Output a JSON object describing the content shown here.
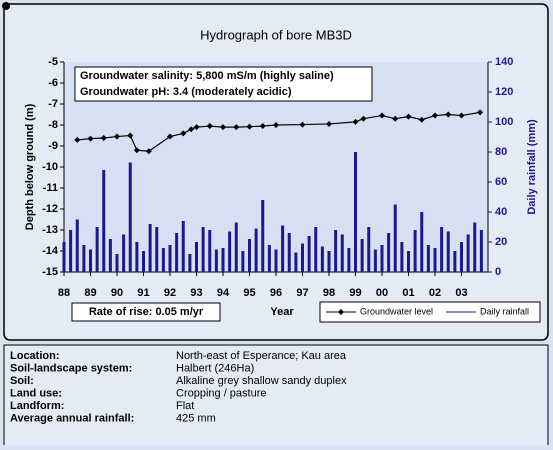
{
  "chart_data": {
    "type": "line",
    "title": "Hydrograph of bore MB3D",
    "xlabel": "Year",
    "ylabel": "Depth below ground (m)",
    "y2label": "Daily rainfall (mm)",
    "annotations": [
      "Groundwater salinity: 5,800 mS/m (highly saline)",
      "Groundwater pH: 3.4 (moderately acidic)",
      "Rate of rise: 0.05 m/yr"
    ],
    "xlim": [
      1988,
      2004
    ],
    "xticks": [
      {
        "value": 1988,
        "label": "88"
      },
      {
        "value": 1989,
        "label": "89"
      },
      {
        "value": 1990,
        "label": "90"
      },
      {
        "value": 1991,
        "label": "91"
      },
      {
        "value": 1992,
        "label": "92"
      },
      {
        "value": 1993,
        "label": "93"
      },
      {
        "value": 1994,
        "label": "94"
      },
      {
        "value": 1995,
        "label": "95"
      },
      {
        "value": 1996,
        "label": "96"
      },
      {
        "value": 1997,
        "label": "97"
      },
      {
        "value": 1998,
        "label": "98"
      },
      {
        "value": 1999,
        "label": "99"
      },
      {
        "value": 2000,
        "label": "00"
      },
      {
        "value": 2001,
        "label": "01"
      },
      {
        "value": 2002,
        "label": "02"
      },
      {
        "value": 2003,
        "label": "03"
      }
    ],
    "ylim": [
      -15,
      -5
    ],
    "yticks": [
      -5,
      -6,
      -7,
      -8,
      -9,
      -10,
      -11,
      -12,
      -13,
      -14,
      -15
    ],
    "y2lim": [
      0,
      140
    ],
    "y2ticks": [
      0,
      20,
      40,
      60,
      80,
      100,
      120,
      140
    ],
    "series": [
      {
        "name": "Groundwater level",
        "type": "line",
        "color": "#000000",
        "x": [
          1988.5,
          1989.0,
          1989.5,
          1990.0,
          1990.5,
          1990.75,
          1991.2,
          1992.0,
          1992.5,
          1992.8,
          1993.0,
          1993.5,
          1994.0,
          1994.5,
          1995.0,
          1995.5,
          1996.0,
          1997.0,
          1998.0,
          1999.0,
          1999.3,
          2000.0,
          2000.5,
          2001.0,
          2001.5,
          2002.0,
          2002.5,
          2003.0,
          2003.7
        ],
        "values": [
          -8.71,
          -8.65,
          -8.62,
          -8.55,
          -8.5,
          -9.2,
          -9.25,
          -8.55,
          -8.4,
          -8.2,
          -8.1,
          -8.05,
          -8.1,
          -8.1,
          -8.08,
          -8.05,
          -8.0,
          -7.98,
          -7.95,
          -7.85,
          -7.7,
          -7.55,
          -7.7,
          -7.6,
          -7.75,
          -7.55,
          -7.5,
          -7.55,
          -7.4
        ]
      },
      {
        "name": "Daily rainfall",
        "type": "bar",
        "axis": "y2",
        "color": "#1a1a8c",
        "x": [
          1988,
          1988.25,
          1988.5,
          1988.75,
          1989,
          1989.25,
          1989.5,
          1989.75,
          1990,
          1990.25,
          1990.5,
          1990.75,
          1991,
          1991.25,
          1991.5,
          1991.75,
          1992,
          1992.25,
          1992.5,
          1992.75,
          1993,
          1993.25,
          1993.5,
          1993.75,
          1994,
          1994.25,
          1994.5,
          1994.75,
          1995,
          1995.25,
          1995.5,
          1995.75,
          1996,
          1996.25,
          1996.5,
          1996.75,
          1997,
          1997.25,
          1997.5,
          1997.75,
          1998,
          1998.25,
          1998.5,
          1998.75,
          1999,
          1999.25,
          1999.5,
          1999.75,
          2000,
          2000.25,
          2000.5,
          2000.75,
          2001,
          2001.25,
          2001.5,
          2001.75,
          2002,
          2002.25,
          2002.5,
          2002.75,
          2003,
          2003.25,
          2003.5,
          2003.75
        ],
        "values": [
          20,
          28,
          35,
          18,
          15,
          30,
          68,
          22,
          12,
          25,
          73,
          20,
          14,
          32,
          30,
          16,
          18,
          26,
          34,
          12,
          20,
          30,
          28,
          15,
          16,
          27,
          33,
          14,
          22,
          29,
          48,
          18,
          15,
          31,
          26,
          13,
          19,
          24,
          30,
          17,
          14,
          28,
          25,
          16,
          80,
          22,
          30,
          15,
          18,
          26,
          45,
          20,
          14,
          28,
          40,
          18,
          16,
          30,
          27,
          14,
          20,
          25,
          33,
          28
        ]
      }
    ]
  },
  "site_info": {
    "rows": [
      {
        "label": "Location:",
        "value": "North-east of Esperance; Kau area"
      },
      {
        "label": "Soil-landscape system:",
        "value": "Halbert (246Ha)"
      },
      {
        "label": "Soil:",
        "value": "Alkaline grey shallow sandy duplex"
      },
      {
        "label": "Land use:",
        "value": "Cropping / pasture"
      },
      {
        "label": "Landform:",
        "value": "Flat"
      },
      {
        "label": "Average annual rainfall:",
        "value": "425 mm"
      }
    ]
  }
}
